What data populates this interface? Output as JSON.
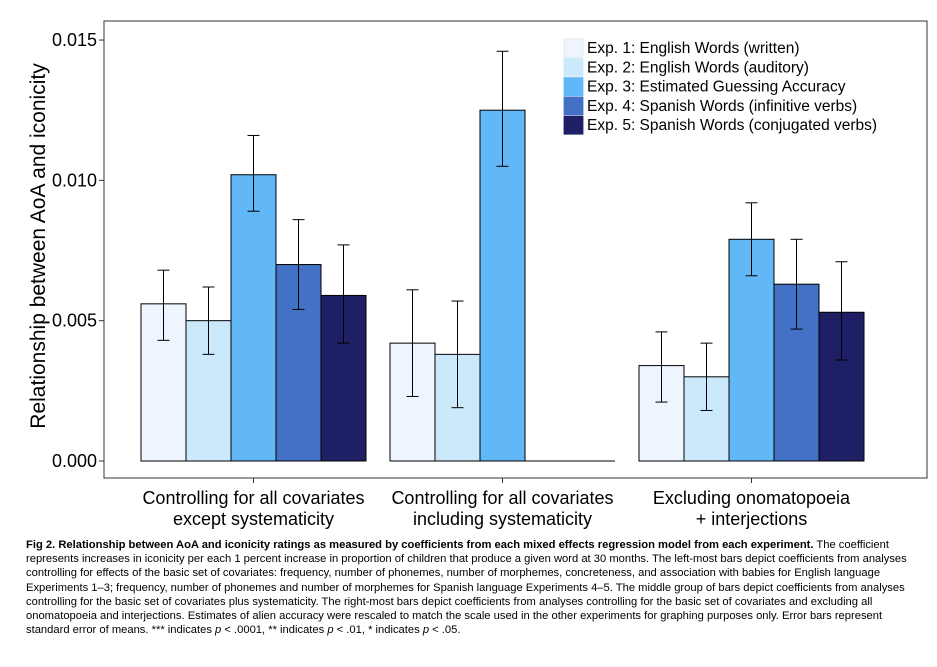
{
  "chart_data": {
    "type": "bar",
    "ylabel": "Relationship between AoA and iconicity",
    "xlabel": "",
    "ylim": [
      0,
      0.0155
    ],
    "yticks": [
      "0.000",
      "0.005",
      "0.010",
      "0.015"
    ],
    "ytick_values": [
      0,
      0.005,
      0.01,
      0.015
    ],
    "grid": false,
    "legend_position": "top-right",
    "categories": [
      [
        "Controlling for all covariates",
        "except systematicity"
      ],
      [
        "Controlling for all covariates",
        "including systematicity"
      ],
      [
        "Excluding onomatopoeia",
        "+ interjections"
      ]
    ],
    "series": [
      {
        "name": "Exp. 1: English Words (written)",
        "color": "#eef5fe",
        "values": [
          0.0056,
          0.0042,
          0.0034
        ],
        "errors": [
          [
            0.0043,
            0.0068
          ],
          [
            0.0023,
            0.0061
          ],
          [
            0.0021,
            0.0046
          ]
        ]
      },
      {
        "name": "Exp. 2: English Words (auditory)",
        "color": "#cce9fb",
        "values": [
          0.005,
          0.0038,
          0.003
        ],
        "errors": [
          [
            0.0038,
            0.0062
          ],
          [
            0.0019,
            0.0057
          ],
          [
            0.0018,
            0.0042
          ]
        ]
      },
      {
        "name": "Exp. 3: Estimated Guessing Accuracy",
        "color": "#62b8f7",
        "values": [
          0.0102,
          0.0125,
          0.0079
        ],
        "errors": [
          [
            0.0089,
            0.0116
          ],
          [
            0.0105,
            0.0146
          ],
          [
            0.0066,
            0.0092
          ]
        ]
      },
      {
        "name": "Exp. 4: Spanish Words (infinitive verbs)",
        "color": "#4371c6",
        "values": [
          0.007,
          null,
          0.0063
        ],
        "errors": [
          [
            0.0054,
            0.0086
          ],
          null,
          [
            0.0047,
            0.0079
          ]
        ]
      },
      {
        "name": "Exp. 5: Spanish Words (conjugated verbs)",
        "color": "#1e1f65",
        "values": [
          0.0059,
          null,
          0.0053
        ],
        "errors": [
          [
            0.0042,
            0.0077
          ],
          null,
          [
            0.0036,
            0.0071
          ]
        ]
      }
    ]
  },
  "caption": {
    "title": "Fig 2. Relationship between AoA and iconicity ratings as measured by coefficients from each mixed effects regression model from each experiment.",
    "body": "The coefficient represents increases in iconicity per each 1 percent increase in proportion of children that produce a given word at 30 months. The left-most bars depict coefficients from analyses controlling for effects of the basic set of covariates: frequency, number of phonemes, number of morphemes, concreteness, and association with babies for English language Experiments 1–3; frequency, number of phonemes and number of morphemes for Spanish language Experiments 4–5. The middle group of bars depict coefficients from analyses controlling for the basic set of covariates plus systematicity. The right-most bars depict coefficients from analyses controlling for the basic set of covariates and excluding all onomatopoeia and interjections. Estimates of alien accuracy were rescaled to match the scale used in the other experiments for graphing purposes only. Error bars represent standard error of means.",
    "sig1_prefix": " *** indicates ",
    "sig1_rest": " < .0001, ** indicates ",
    "sig2_rest": " < .01, * indicates ",
    "sig3_rest": " < .05.",
    "p": "p"
  }
}
